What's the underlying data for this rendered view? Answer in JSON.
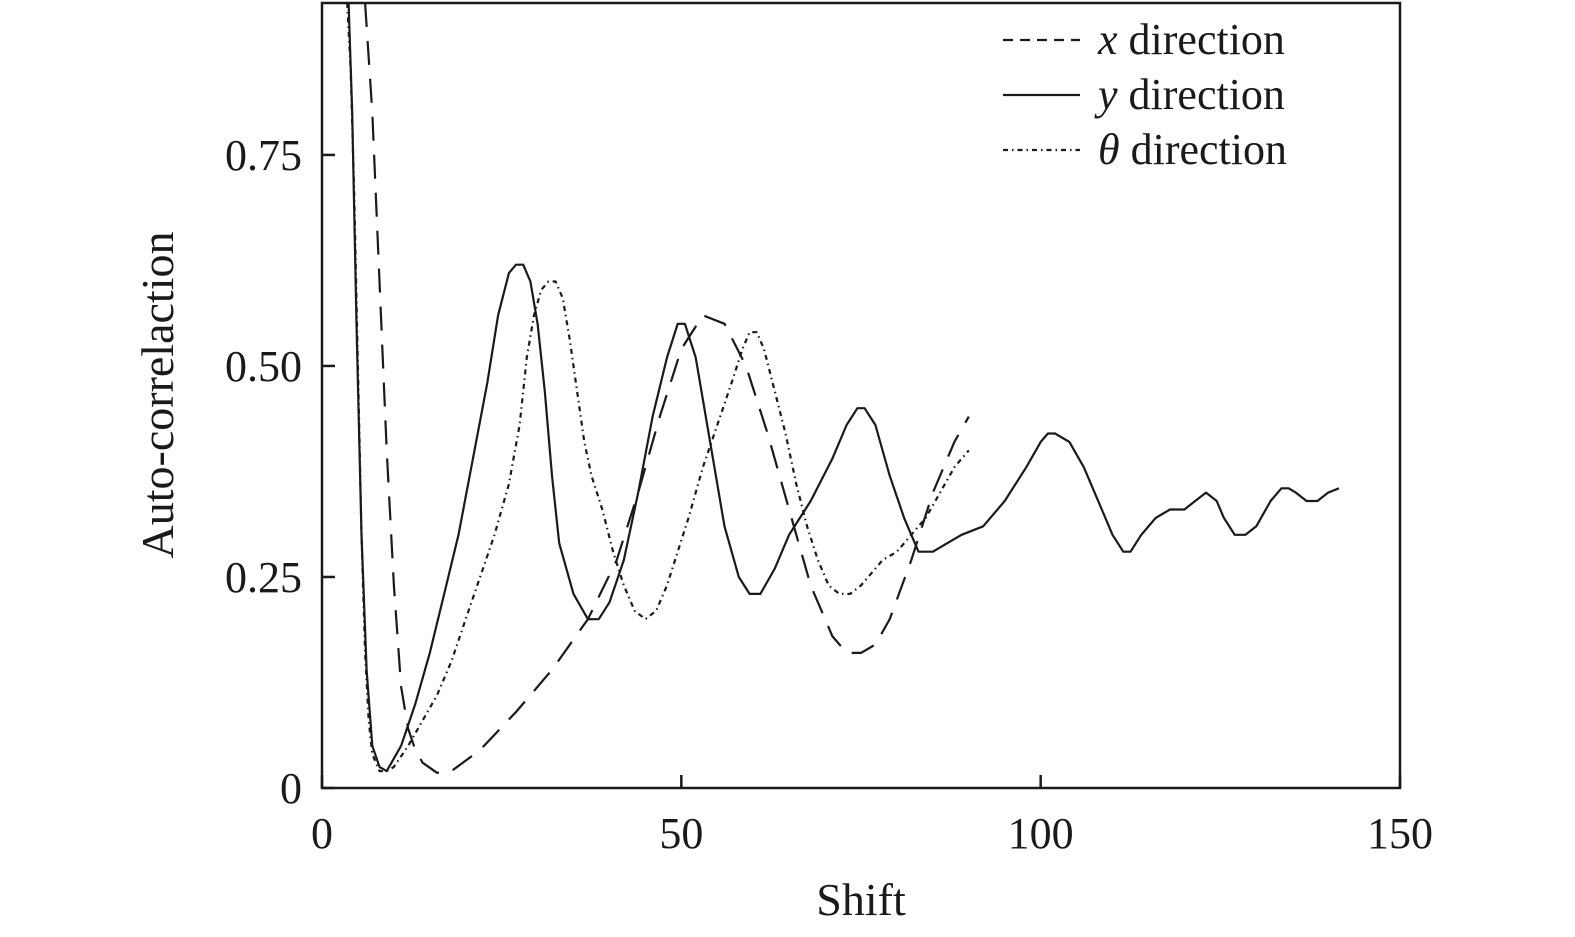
{
  "chart_data": {
    "type": "line",
    "title": "",
    "xlabel": "Shift",
    "ylabel": "Auto-correlaction",
    "xlim": [
      0,
      150
    ],
    "ylim": [
      0,
      0.93
    ],
    "xticks": [
      {
        "value": 0,
        "label": "0"
      },
      {
        "value": 50,
        "label": "50"
      },
      {
        "value": 100,
        "label": "100"
      },
      {
        "value": 150,
        "label": "150"
      }
    ],
    "yticks": [
      {
        "value": 0,
        "label": "0"
      },
      {
        "value": 0.25,
        "label": "0.25"
      },
      {
        "value": 0.5,
        "label": "0.50"
      },
      {
        "value": 0.75,
        "label": "0.75"
      }
    ],
    "grid": false,
    "legend_position": "top-right",
    "legend": [
      {
        "symbol": "x",
        "text": " direction",
        "style": "dashed"
      },
      {
        "symbol": "y",
        "text": " direction",
        "style": "solid"
      },
      {
        "symbol": "θ",
        "text": " direction",
        "style": "dashdot"
      }
    ],
    "series": [
      {
        "name": "x direction",
        "style": "dashed",
        "x": [
          6,
          7,
          8,
          9,
          10,
          11,
          12,
          13,
          14,
          16,
          18,
          22,
          27,
          32,
          37,
          41,
          44,
          47,
          50,
          53,
          56,
          59,
          62,
          65,
          68,
          71,
          73,
          75,
          77,
          79,
          82,
          85,
          88,
          90
        ],
        "y": [
          0.93,
          0.8,
          0.6,
          0.4,
          0.24,
          0.12,
          0.07,
          0.045,
          0.03,
          0.018,
          0.02,
          0.045,
          0.09,
          0.14,
          0.2,
          0.27,
          0.35,
          0.44,
          0.52,
          0.56,
          0.55,
          0.5,
          0.42,
          0.33,
          0.24,
          0.18,
          0.16,
          0.16,
          0.17,
          0.2,
          0.27,
          0.35,
          0.41,
          0.44
        ]
      },
      {
        "name": "y direction",
        "style": "solid",
        "x": [
          3.7,
          4.2,
          4.8,
          5.5,
          6.2,
          7,
          8,
          9,
          11,
          13,
          15,
          17,
          19,
          21,
          23,
          24.5,
          26,
          27,
          28,
          29,
          30,
          31,
          32,
          33,
          35,
          37,
          38.5,
          40,
          42,
          44,
          46,
          48,
          49.5,
          50.5,
          52,
          54,
          56,
          58,
          59.5,
          61,
          63,
          65,
          68,
          71,
          73,
          74.5,
          75.5,
          77,
          79,
          81,
          83,
          85,
          87,
          89,
          92,
          95,
          98,
          100,
          101,
          102,
          104,
          106,
          108,
          110,
          111.5,
          112.5,
          114,
          116,
          118,
          120,
          121.5,
          123,
          124.5,
          125.5,
          127,
          128.5,
          130,
          132,
          133.5,
          134.5,
          135.5,
          137,
          138.5,
          140,
          141.5
        ],
        "y": [
          0.93,
          0.8,
          0.55,
          0.3,
          0.14,
          0.05,
          0.025,
          0.02,
          0.05,
          0.1,
          0.16,
          0.23,
          0.3,
          0.39,
          0.48,
          0.56,
          0.61,
          0.62,
          0.62,
          0.6,
          0.55,
          0.47,
          0.37,
          0.29,
          0.23,
          0.2,
          0.2,
          0.22,
          0.27,
          0.35,
          0.44,
          0.51,
          0.55,
          0.55,
          0.51,
          0.41,
          0.31,
          0.25,
          0.23,
          0.23,
          0.26,
          0.3,
          0.34,
          0.39,
          0.43,
          0.45,
          0.45,
          0.43,
          0.37,
          0.32,
          0.28,
          0.28,
          0.29,
          0.3,
          0.31,
          0.34,
          0.38,
          0.41,
          0.42,
          0.42,
          0.41,
          0.38,
          0.34,
          0.3,
          0.28,
          0.28,
          0.3,
          0.32,
          0.33,
          0.33,
          0.34,
          0.35,
          0.34,
          0.32,
          0.3,
          0.3,
          0.31,
          0.34,
          0.355,
          0.355,
          0.35,
          0.34,
          0.34,
          0.35,
          0.355
        ]
      },
      {
        "name": "θ direction",
        "style": "dashdot",
        "x": [
          3.5,
          4,
          4.5,
          5,
          5.5,
          6,
          6.5,
          7,
          8,
          9,
          10,
          12,
          14,
          16,
          18,
          20,
          22,
          24,
          26,
          27.5,
          28.5,
          29.5,
          30.5,
          31.5,
          32.5,
          33.5,
          34.5,
          35.5,
          36.5,
          37.5,
          39,
          40.5,
          42,
          43.5,
          45,
          46.5,
          48,
          49.5,
          51,
          53,
          55,
          57,
          58.5,
          59.5,
          60.5,
          61.5,
          63,
          64.5,
          66,
          67.5,
          69,
          70.5,
          72,
          73.5,
          75,
          76.5,
          78,
          80,
          82,
          84,
          86,
          88,
          90
        ],
        "y": [
          0.93,
          0.85,
          0.7,
          0.5,
          0.3,
          0.16,
          0.08,
          0.04,
          0.02,
          0.02,
          0.025,
          0.05,
          0.08,
          0.11,
          0.15,
          0.2,
          0.25,
          0.3,
          0.36,
          0.43,
          0.51,
          0.56,
          0.59,
          0.6,
          0.6,
          0.58,
          0.53,
          0.47,
          0.41,
          0.37,
          0.33,
          0.28,
          0.24,
          0.21,
          0.2,
          0.21,
          0.24,
          0.28,
          0.32,
          0.38,
          0.43,
          0.48,
          0.52,
          0.54,
          0.54,
          0.52,
          0.47,
          0.42,
          0.36,
          0.31,
          0.27,
          0.24,
          0.23,
          0.23,
          0.24,
          0.255,
          0.27,
          0.28,
          0.3,
          0.32,
          0.35,
          0.38,
          0.4
        ]
      }
    ]
  }
}
